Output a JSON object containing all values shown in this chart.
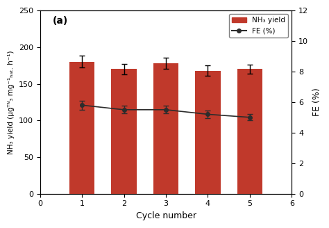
{
  "title": "(a)",
  "cycles": [
    1,
    2,
    3,
    4,
    5
  ],
  "nh3_yield": [
    180,
    170,
    178,
    168,
    170
  ],
  "nh3_yield_err": [
    8,
    7,
    8,
    7,
    6
  ],
  "fe": [
    5.8,
    5.5,
    5.5,
    5.2,
    5.0
  ],
  "fe_err": [
    0.3,
    0.25,
    0.25,
    0.25,
    0.2
  ],
  "bar_color": "#C0392B",
  "line_color": "#2C2C2C",
  "ylim_left": [
    0,
    250
  ],
  "ylim_right": [
    0,
    12
  ],
  "yticks_left": [
    0,
    50,
    100,
    150,
    200,
    250
  ],
  "yticks_right": [
    0,
    2,
    4,
    6,
    8,
    10,
    12
  ],
  "xlabel": "Cycle number",
  "ylabel_left": "NH₃ yield (μgᵀᴺ₃ mg⁻¹ₕₐₜ. h⁻¹)",
  "ylabel_right": "FE (%)",
  "bg_color": "#FFFFFF",
  "grid": false,
  "legend_nh3": "NH₃ yield",
  "legend_fe": "FE (%)"
}
